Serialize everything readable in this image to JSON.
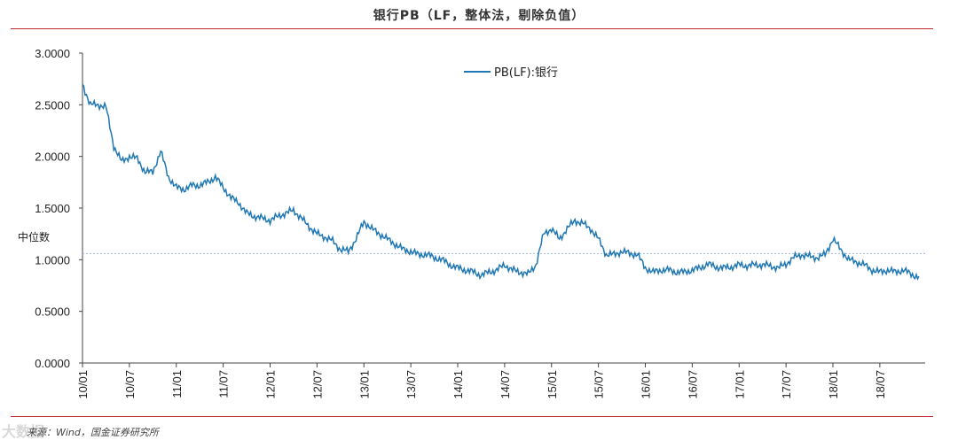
{
  "title": "银行PB（LF，整体法，剔除负值）",
  "source": "来源：Wind，国金证券研究所",
  "watermark": "大数据",
  "median_label": "中位数",
  "colors": {
    "series": "#1f77b4",
    "rule": "#c0262d",
    "median": "#9db7e0"
  },
  "chart_data": {
    "type": "line",
    "title": "银行PB（LF，整体法，剔除负值）",
    "xlabel": "",
    "ylabel": "",
    "ylim": [
      0,
      3
    ],
    "y_ticks": [
      "0.0000",
      "0.5000",
      "1.0000",
      "1.5000",
      "2.0000",
      "2.5000",
      "3.0000"
    ],
    "x_ticks": [
      "10/01",
      "10/07",
      "11/01",
      "11/07",
      "12/01",
      "12/07",
      "13/01",
      "13/07",
      "14/01",
      "14/07",
      "15/01",
      "15/07",
      "16/01",
      "16/07",
      "17/01",
      "17/07",
      "18/01",
      "18/07"
    ],
    "legend": {
      "position": "top-center",
      "entries": [
        "PB(LF):银行"
      ]
    },
    "median": 1.06,
    "series": [
      {
        "name": "PB(LF):银行",
        "x": [
          "2010-01",
          "2010-02",
          "2010-03",
          "2010-04",
          "2010-05",
          "2010-06",
          "2010-07",
          "2010-08",
          "2010-09",
          "2010-10",
          "2010-11",
          "2010-12",
          "2011-01",
          "2011-02",
          "2011-03",
          "2011-04",
          "2011-05",
          "2011-06",
          "2011-07",
          "2011-08",
          "2011-09",
          "2011-10",
          "2011-11",
          "2011-12",
          "2012-01",
          "2012-02",
          "2012-03",
          "2012-04",
          "2012-05",
          "2012-06",
          "2012-07",
          "2012-08",
          "2012-09",
          "2012-10",
          "2012-11",
          "2012-12",
          "2013-01",
          "2013-02",
          "2013-03",
          "2013-04",
          "2013-05",
          "2013-06",
          "2013-07",
          "2013-08",
          "2013-09",
          "2013-10",
          "2013-11",
          "2013-12",
          "2014-01",
          "2014-02",
          "2014-03",
          "2014-04",
          "2014-05",
          "2014-06",
          "2014-07",
          "2014-08",
          "2014-09",
          "2014-10",
          "2014-11",
          "2014-12",
          "2015-01",
          "2015-02",
          "2015-03",
          "2015-04",
          "2015-05",
          "2015-06",
          "2015-07",
          "2015-08",
          "2015-09",
          "2015-10",
          "2015-11",
          "2015-12",
          "2016-01",
          "2016-02",
          "2016-03",
          "2016-04",
          "2016-05",
          "2016-06",
          "2016-07",
          "2016-08",
          "2016-09",
          "2016-10",
          "2016-11",
          "2016-12",
          "2017-01",
          "2017-02",
          "2017-03",
          "2017-04",
          "2017-05",
          "2017-06",
          "2017-07",
          "2017-08",
          "2017-09",
          "2017-10",
          "2017-11",
          "2017-12",
          "2018-01",
          "2018-02",
          "2018-03",
          "2018-04",
          "2018-05",
          "2018-06",
          "2018-07",
          "2018-08",
          "2018-09",
          "2018-10",
          "2018-11",
          "2018-12"
        ],
        "values": [
          2.7,
          2.5,
          2.5,
          2.48,
          2.1,
          1.95,
          2.0,
          1.98,
          1.85,
          1.85,
          2.05,
          1.8,
          1.7,
          1.68,
          1.72,
          1.72,
          1.75,
          1.8,
          1.7,
          1.6,
          1.55,
          1.45,
          1.42,
          1.4,
          1.38,
          1.42,
          1.45,
          1.48,
          1.4,
          1.32,
          1.25,
          1.22,
          1.18,
          1.1,
          1.08,
          1.2,
          1.37,
          1.3,
          1.25,
          1.2,
          1.15,
          1.1,
          1.08,
          1.05,
          1.05,
          1.02,
          1.0,
          0.95,
          0.92,
          0.9,
          0.88,
          0.85,
          0.88,
          0.9,
          0.95,
          0.9,
          0.88,
          0.86,
          0.95,
          1.25,
          1.3,
          1.2,
          1.3,
          1.38,
          1.35,
          1.3,
          1.2,
          1.05,
          1.05,
          1.08,
          1.06,
          1.05,
          0.92,
          0.88,
          0.9,
          0.9,
          0.88,
          0.88,
          0.9,
          0.92,
          0.96,
          0.93,
          0.92,
          0.93,
          0.95,
          0.94,
          0.95,
          0.95,
          0.94,
          0.92,
          0.96,
          1.02,
          1.05,
          1.03,
          1.02,
          1.05,
          1.2,
          1.1,
          1.0,
          0.98,
          0.95,
          0.9,
          0.88,
          0.9,
          0.88,
          0.9,
          0.86,
          0.83
        ]
      }
    ]
  }
}
